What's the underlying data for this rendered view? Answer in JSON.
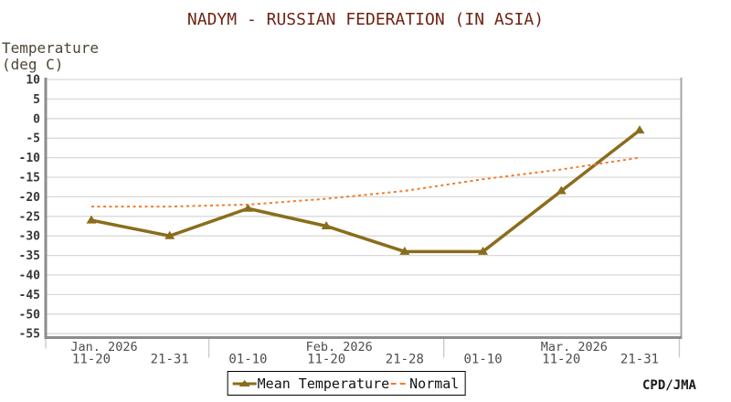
{
  "chart_data": {
    "type": "line",
    "title": "NADYM - RUSSIAN FEDERATION (IN ASIA)",
    "ylabel_line1": "Temperature",
    "ylabel_line2": "(deg C)",
    "ylim": [
      -55,
      10
    ],
    "yticks": [
      10,
      5,
      0,
      -5,
      -10,
      -15,
      -20,
      -25,
      -30,
      -35,
      -40,
      -45,
      -50,
      -55
    ],
    "categories": [
      "11-20",
      "21-31",
      "01-10",
      "11-20",
      "21-28",
      "01-10",
      "11-20",
      "21-31"
    ],
    "month_labels": [
      {
        "label": "Jan. 2026",
        "anchor_index": 0
      },
      {
        "label": "Feb. 2026",
        "anchor_index": 3
      },
      {
        "label": "Mar. 2026",
        "anchor_index": 6
      }
    ],
    "month_boundary_after_index": [
      1,
      4,
      7
    ],
    "series": [
      {
        "name": "Mean Temperature",
        "style": "solid",
        "marker": "triangle",
        "color": "#8a6d1c",
        "values": [
          -26,
          -30,
          -23,
          -27.5,
          -34,
          -34,
          -18.5,
          -3
        ]
      },
      {
        "name": "Normal",
        "style": "dashed",
        "marker": "none",
        "color": "#f07c2c",
        "values": [
          -22.5,
          -22.5,
          -22,
          -20.5,
          -18.5,
          -15.5,
          -13,
          -10
        ]
      }
    ],
    "grid": true,
    "legend_position": "bottom-center",
    "credit": "CPD/JMA",
    "colors": {
      "title": "#6e2313",
      "axis_caption": "#4e4537",
      "ytick_label": "#383838",
      "xtick_label": "#4d4d4d",
      "gridline": "#d9d9d9",
      "spine": "#8c8c8c",
      "right_spine": "#a6a6a6",
      "boundary_tick": "#c9c9c9"
    }
  }
}
